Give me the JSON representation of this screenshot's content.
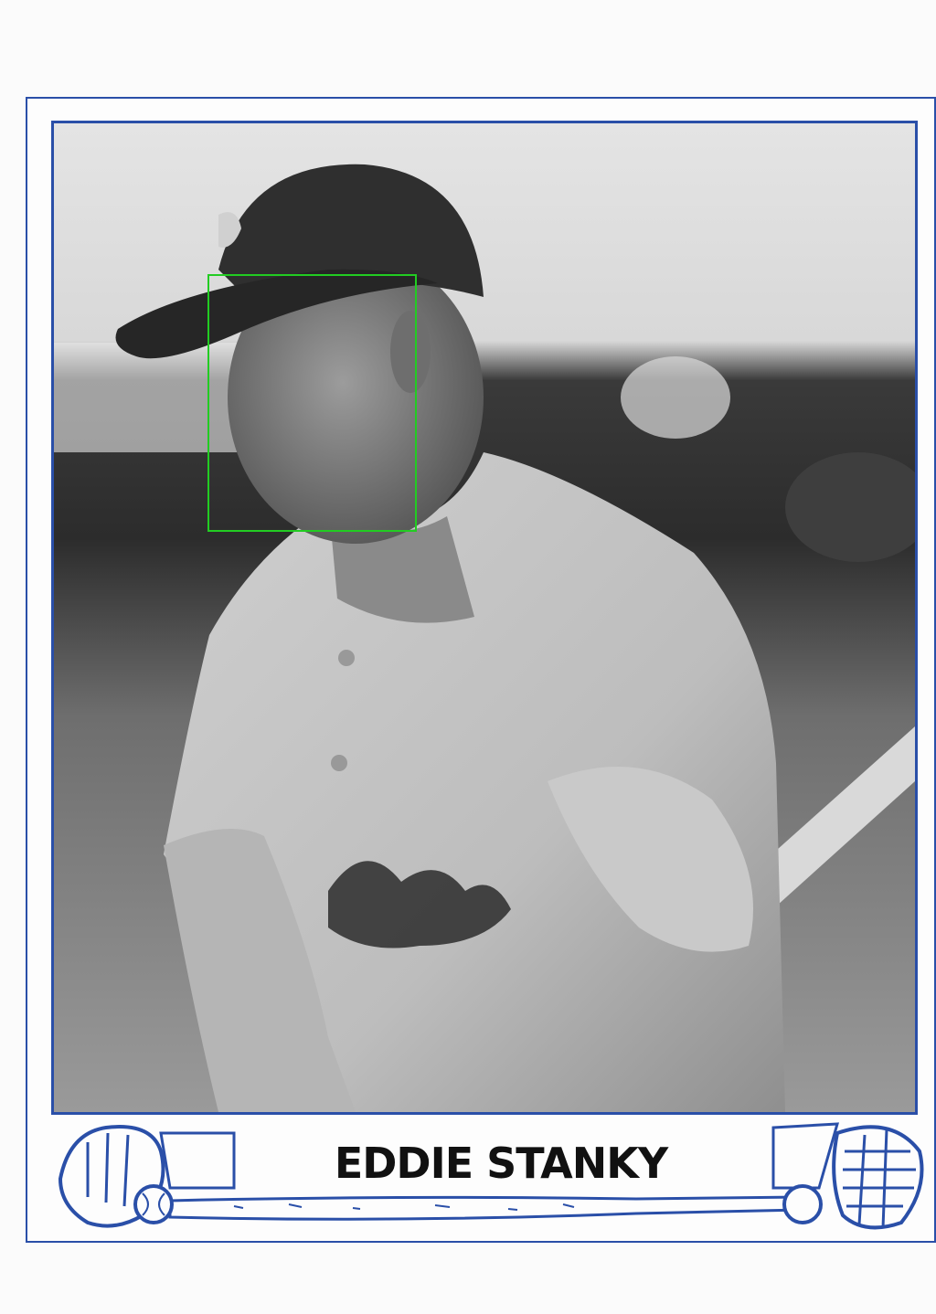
{
  "card": {
    "player_name": "EDDIE STANKY",
    "frame_color": "#2a4fa8",
    "highlight_color": "#22cc22"
  },
  "photo": {
    "description_icon": "baseball-player-photo-icon"
  },
  "ornaments": {
    "left": "baseball-glove-icon",
    "right": "catcher-mask-icon",
    "ball": "baseball-icon",
    "bat": "baseball-bat-icon"
  }
}
